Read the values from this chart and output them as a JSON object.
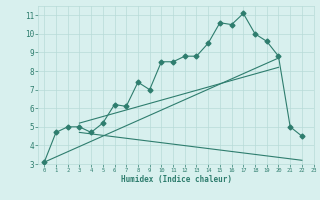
{
  "line1_x": [
    0,
    1,
    2,
    3,
    4,
    5,
    6,
    7,
    8,
    9,
    10,
    11,
    12,
    13,
    14,
    15,
    16,
    17,
    18,
    19,
    20,
    21,
    22
  ],
  "line1_y": [
    3.1,
    4.7,
    5.0,
    5.0,
    4.7,
    5.2,
    6.2,
    6.1,
    7.4,
    7.0,
    8.5,
    8.5,
    8.8,
    8.8,
    9.5,
    10.6,
    10.5,
    11.1,
    10.0,
    9.6,
    8.8,
    5.0,
    4.5
  ],
  "line2_x": [
    0,
    20
  ],
  "line2_y": [
    3.1,
    8.7
  ],
  "line3_x": [
    3,
    20
  ],
  "line3_y": [
    5.2,
    8.2
  ],
  "line4_x": [
    3,
    22
  ],
  "line4_y": [
    4.7,
    3.2
  ],
  "color": "#2e7d6e",
  "bg_color": "#d8f0ee",
  "grid_color": "#b8dbd8",
  "xlabel": "Humidex (Indice chaleur)",
  "xlim": [
    -0.5,
    23
  ],
  "ylim": [
    3,
    11.5
  ],
  "xticks": [
    0,
    1,
    2,
    3,
    4,
    5,
    6,
    7,
    8,
    9,
    10,
    11,
    12,
    13,
    14,
    15,
    16,
    17,
    18,
    19,
    20,
    21,
    22,
    23
  ],
  "yticks": [
    3,
    4,
    5,
    6,
    7,
    8,
    9,
    10,
    11
  ],
  "marker": "D",
  "markersize": 2.5,
  "linewidth": 0.8
}
